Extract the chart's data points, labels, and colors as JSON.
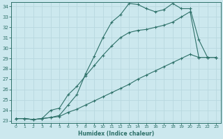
{
  "xlabel": "Humidex (Indice chaleur)",
  "xlim": [
    0,
    23
  ],
  "ylim": [
    23,
    34
  ],
  "xticks": [
    0,
    1,
    2,
    3,
    4,
    5,
    6,
    7,
    8,
    9,
    10,
    11,
    12,
    13,
    14,
    15,
    16,
    17,
    18,
    19,
    20,
    21,
    22,
    23
  ],
  "yticks": [
    23,
    24,
    25,
    26,
    27,
    28,
    29,
    30,
    31,
    32,
    33,
    34
  ],
  "bg_color": "#cce8ee",
  "line_color": "#2d7068",
  "grid_color": "#b8d8df",
  "line1_x": [
    0,
    1,
    2,
    3,
    4,
    5,
    6,
    7,
    8,
    9,
    10,
    11,
    12,
    13,
    14,
    15,
    16,
    17,
    18,
    19,
    20,
    21,
    22,
    23
  ],
  "line1_y": [
    23.2,
    23.2,
    23.1,
    23.2,
    23.3,
    23.5,
    24.5,
    25.5,
    27.5,
    29.2,
    31.0,
    32.5,
    33.2,
    34.3,
    34.2,
    33.8,
    33.5,
    33.7,
    34.3,
    33.8,
    33.8,
    30.8,
    29.1,
    29.1
  ],
  "line2_x": [
    0,
    1,
    2,
    3,
    4,
    5,
    6,
    7,
    8,
    9,
    10,
    11,
    12,
    13,
    14,
    15,
    16,
    17,
    18,
    19,
    20,
    21,
    22,
    23
  ],
  "line2_y": [
    23.2,
    23.2,
    23.1,
    23.2,
    24.0,
    24.2,
    25.5,
    26.3,
    27.3,
    28.3,
    29.3,
    30.2,
    31.0,
    31.5,
    31.7,
    31.8,
    32.0,
    32.2,
    32.5,
    33.0,
    33.5,
    29.1,
    29.1,
    29.1
  ],
  "line3_x": [
    0,
    1,
    2,
    3,
    4,
    5,
    6,
    7,
    8,
    9,
    10,
    11,
    12,
    13,
    14,
    15,
    16,
    17,
    18,
    19,
    20,
    21,
    22,
    23
  ],
  "line3_y": [
    23.2,
    23.2,
    23.1,
    23.2,
    23.3,
    23.4,
    23.8,
    24.1,
    24.5,
    24.9,
    25.3,
    25.7,
    26.1,
    26.5,
    27.0,
    27.4,
    27.8,
    28.2,
    28.6,
    29.0,
    29.4,
    29.1,
    29.1,
    29.1
  ]
}
